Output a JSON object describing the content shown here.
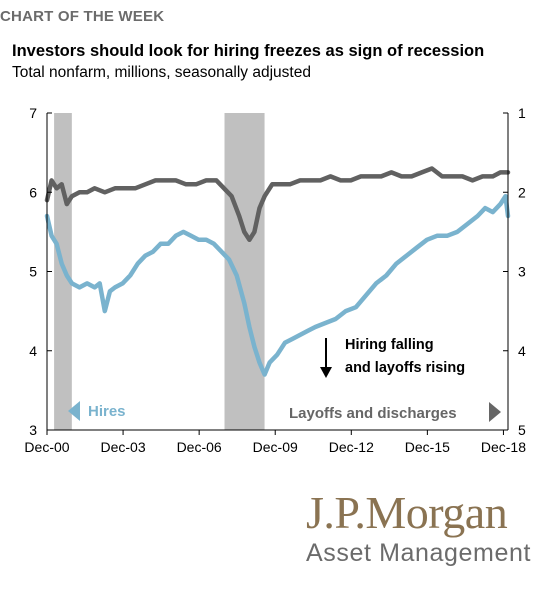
{
  "header": {
    "kicker": "CHART OF THE WEEK",
    "title": "Investors should look for hiring freezes as sign of recession",
    "subtitle": "Total nonfarm, millions, seasonally adjusted"
  },
  "annotation": {
    "line1": "Hiring falling",
    "line2": "and layoffs rising"
  },
  "logo": {
    "brand": "J.P.Morgan",
    "division": "Asset Management"
  },
  "colors": {
    "hires": "#7ab3ce",
    "layoffs": "#616161",
    "recession": "#c0c0c0"
  },
  "chart_data": {
    "type": "line",
    "x_tick_labels": [
      "Dec-00",
      "Dec-03",
      "Dec-06",
      "Dec-09",
      "Dec-12",
      "Dec-15",
      "Dec-18"
    ],
    "x_ticks": [
      2000.92,
      2003.92,
      2006.92,
      2009.92,
      2012.92,
      2015.92,
      2018.92
    ],
    "xlim": [
      2000.92,
      2019.1
    ],
    "left_axis": {
      "ylim": [
        3,
        7
      ],
      "ticks": [
        3,
        4,
        5,
        6,
        7
      ]
    },
    "right_axis": {
      "ylim": [
        5,
        1
      ],
      "inverted": true,
      "ticks": [
        1,
        2,
        3,
        4,
        5
      ]
    },
    "recessions": [
      [
        2001.2,
        2001.9
      ],
      [
        2007.92,
        2009.5
      ]
    ],
    "series": [
      {
        "name": "Hires",
        "axis": "left",
        "direction_label": "left",
        "points": [
          [
            2000.92,
            5.7
          ],
          [
            2001.1,
            5.45
          ],
          [
            2001.3,
            5.35
          ],
          [
            2001.5,
            5.1
          ],
          [
            2001.7,
            4.95
          ],
          [
            2001.9,
            4.85
          ],
          [
            2002.2,
            4.8
          ],
          [
            2002.5,
            4.85
          ],
          [
            2002.8,
            4.8
          ],
          [
            2003.0,
            4.85
          ],
          [
            2003.2,
            4.5
          ],
          [
            2003.4,
            4.75
          ],
          [
            2003.6,
            4.8
          ],
          [
            2003.9,
            4.85
          ],
          [
            2004.2,
            4.95
          ],
          [
            2004.5,
            5.1
          ],
          [
            2004.8,
            5.2
          ],
          [
            2005.1,
            5.25
          ],
          [
            2005.4,
            5.35
          ],
          [
            2005.7,
            5.35
          ],
          [
            2006.0,
            5.45
          ],
          [
            2006.3,
            5.5
          ],
          [
            2006.6,
            5.45
          ],
          [
            2006.9,
            5.4
          ],
          [
            2007.2,
            5.4
          ],
          [
            2007.5,
            5.35
          ],
          [
            2007.8,
            5.25
          ],
          [
            2008.1,
            5.15
          ],
          [
            2008.4,
            4.95
          ],
          [
            2008.7,
            4.6
          ],
          [
            2008.9,
            4.3
          ],
          [
            2009.1,
            4.05
          ],
          [
            2009.3,
            3.85
          ],
          [
            2009.5,
            3.7
          ],
          [
            2009.7,
            3.85
          ],
          [
            2010.0,
            3.95
          ],
          [
            2010.3,
            4.1
          ],
          [
            2010.6,
            4.15
          ],
          [
            2010.9,
            4.2
          ],
          [
            2011.2,
            4.25
          ],
          [
            2011.5,
            4.3
          ],
          [
            2011.9,
            4.35
          ],
          [
            2012.3,
            4.4
          ],
          [
            2012.7,
            4.5
          ],
          [
            2013.1,
            4.55
          ],
          [
            2013.5,
            4.7
          ],
          [
            2013.9,
            4.85
          ],
          [
            2014.3,
            4.95
          ],
          [
            2014.7,
            5.1
          ],
          [
            2015.1,
            5.2
          ],
          [
            2015.5,
            5.3
          ],
          [
            2015.9,
            5.4
          ],
          [
            2016.3,
            5.45
          ],
          [
            2016.7,
            5.45
          ],
          [
            2017.1,
            5.5
          ],
          [
            2017.5,
            5.6
          ],
          [
            2017.9,
            5.7
          ],
          [
            2018.2,
            5.8
          ],
          [
            2018.5,
            5.75
          ],
          [
            2018.8,
            5.85
          ],
          [
            2019.0,
            5.95
          ],
          [
            2019.1,
            5.7
          ]
        ]
      },
      {
        "name": "Layoffs and discharges",
        "axis": "right",
        "direction_label": "right",
        "points": [
          [
            2000.92,
            2.1
          ],
          [
            2001.1,
            1.85
          ],
          [
            2001.3,
            1.95
          ],
          [
            2001.5,
            1.9
          ],
          [
            2001.7,
            2.15
          ],
          [
            2001.9,
            2.05
          ],
          [
            2002.2,
            2.0
          ],
          [
            2002.5,
            2.0
          ],
          [
            2002.8,
            1.95
          ],
          [
            2003.2,
            2.0
          ],
          [
            2003.6,
            1.95
          ],
          [
            2004.0,
            1.95
          ],
          [
            2004.4,
            1.95
          ],
          [
            2004.8,
            1.9
          ],
          [
            2005.2,
            1.85
          ],
          [
            2005.6,
            1.85
          ],
          [
            2006.0,
            1.85
          ],
          [
            2006.4,
            1.9
          ],
          [
            2006.8,
            1.9
          ],
          [
            2007.2,
            1.85
          ],
          [
            2007.6,
            1.85
          ],
          [
            2007.9,
            1.95
          ],
          [
            2008.2,
            2.05
          ],
          [
            2008.5,
            2.3
          ],
          [
            2008.7,
            2.5
          ],
          [
            2008.9,
            2.6
          ],
          [
            2009.1,
            2.5
          ],
          [
            2009.3,
            2.2
          ],
          [
            2009.5,
            2.05
          ],
          [
            2009.8,
            1.9
          ],
          [
            2010.1,
            1.9
          ],
          [
            2010.5,
            1.9
          ],
          [
            2010.9,
            1.85
          ],
          [
            2011.3,
            1.85
          ],
          [
            2011.7,
            1.85
          ],
          [
            2012.1,
            1.8
          ],
          [
            2012.5,
            1.85
          ],
          [
            2012.9,
            1.85
          ],
          [
            2013.3,
            1.8
          ],
          [
            2013.7,
            1.8
          ],
          [
            2014.1,
            1.8
          ],
          [
            2014.5,
            1.75
          ],
          [
            2014.9,
            1.8
          ],
          [
            2015.3,
            1.8
          ],
          [
            2015.7,
            1.75
          ],
          [
            2016.1,
            1.7
          ],
          [
            2016.5,
            1.8
          ],
          [
            2016.9,
            1.8
          ],
          [
            2017.3,
            1.8
          ],
          [
            2017.7,
            1.85
          ],
          [
            2018.1,
            1.8
          ],
          [
            2018.5,
            1.8
          ],
          [
            2018.8,
            1.75
          ],
          [
            2019.1,
            1.75
          ]
        ]
      }
    ]
  }
}
